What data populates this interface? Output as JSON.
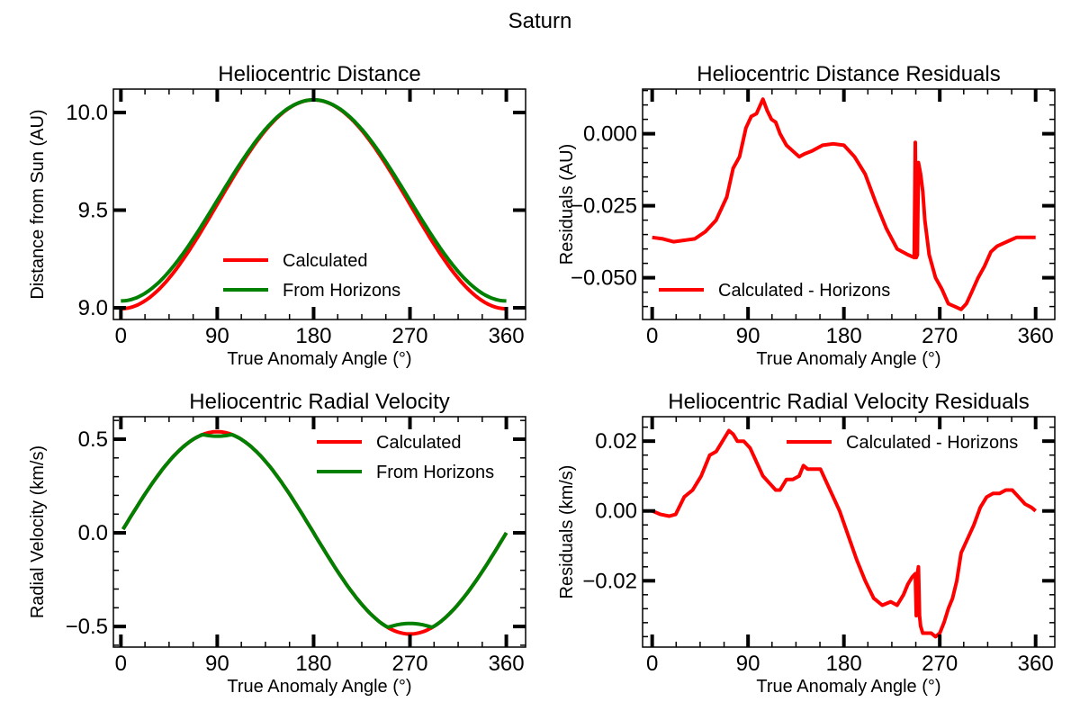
{
  "figure": {
    "suptitle": "Saturn"
  },
  "chart_data": [
    {
      "type": "line",
      "title": "Heliocentric Distance",
      "xlabel": "True Anomaly Angle (°)",
      "ylabel": "Distance from Sun (AU)",
      "xlim": [
        -7,
        378
      ],
      "ylim": [
        8.94,
        10.12
      ],
      "xticks": [
        0,
        90,
        180,
        270,
        360
      ],
      "yticks": [
        9.0,
        9.5,
        10.0
      ],
      "ytick_labels": [
        "9.0",
        "9.5",
        "10.0"
      ],
      "legend_position": "lower-center",
      "series": [
        {
          "name": "Calculated",
          "color": "#ff0000",
          "kind": "cos",
          "a": 9.53,
          "b": -0.535,
          "x0": 0,
          "x1": 360
        },
        {
          "name": "From Horizons",
          "color": "#008000",
          "kind": "cos",
          "a": 9.55,
          "b": -0.515,
          "x0": 0,
          "x1": 360
        }
      ]
    },
    {
      "type": "line",
      "title": "Heliocentric Distance Residuals",
      "xlabel": "True Anomaly Angle (°)",
      "ylabel": "Residuals (AU)",
      "xlim": [
        -9,
        378
      ],
      "ylim": [
        -0.0645,
        0.0155
      ],
      "xticks": [
        0,
        90,
        180,
        270,
        360
      ],
      "yticks": [
        0.0,
        -0.025,
        -0.05
      ],
      "ytick_labels": [
        "0.000",
        "−0.025",
        "−0.050"
      ],
      "legend_position": "lower-left",
      "series": [
        {
          "name": "Calculated - Horizons",
          "color": "#ff0000",
          "kind": "points",
          "x": [
            0,
            10,
            20,
            30,
            40,
            50,
            60,
            70,
            76,
            82,
            88,
            93,
            98,
            104,
            108,
            112,
            116,
            120,
            126,
            132,
            138,
            143,
            150,
            160,
            170,
            180,
            190,
            200,
            210,
            220,
            230,
            240,
            246,
            247,
            248,
            249,
            250,
            251,
            252,
            254,
            256,
            260,
            266,
            272,
            278,
            284,
            290,
            295,
            300,
            306,
            312,
            318,
            324,
            330,
            336,
            342,
            348,
            354,
            360
          ],
          "y": [
            -0.036,
            -0.0365,
            -0.0375,
            -0.037,
            -0.0365,
            -0.034,
            -0.03,
            -0.022,
            -0.012,
            -0.008,
            0.002,
            0.006,
            0.007,
            0.012,
            0.008,
            0.005,
            0.004,
            0.0,
            -0.004,
            -0.006,
            -0.008,
            -0.007,
            -0.006,
            -0.004,
            -0.0035,
            -0.004,
            -0.008,
            -0.014,
            -0.024,
            -0.033,
            -0.04,
            -0.042,
            -0.043,
            -0.003,
            -0.043,
            -0.042,
            -0.01,
            -0.012,
            -0.014,
            -0.02,
            -0.03,
            -0.042,
            -0.05,
            -0.054,
            -0.059,
            -0.06,
            -0.061,
            -0.059,
            -0.055,
            -0.05,
            -0.046,
            -0.041,
            -0.039,
            -0.038,
            -0.037,
            -0.036,
            -0.036,
            -0.036,
            -0.036
          ]
        }
      ]
    },
    {
      "type": "line",
      "title": "Heliocentric Radial Velocity",
      "xlabel": "True Anomaly Angle (°)",
      "ylabel": "Radial Velocity (km/s)",
      "xlim": [
        -7,
        378
      ],
      "ylim": [
        -0.61,
        0.62
      ],
      "xticks": [
        0,
        90,
        180,
        270,
        360
      ],
      "yticks": [
        0.5,
        0.0,
        -0.5
      ],
      "ytick_labels": [
        "0.5",
        "0.0",
        "−0.5"
      ],
      "legend_position": "upper-right",
      "series": [
        {
          "name": "Calculated",
          "color": "#ff0000",
          "kind": "sin",
          "a": 0.0,
          "b": 0.54,
          "x0": 2,
          "x1": 360
        },
        {
          "name": "From Horizons",
          "color": "#008000",
          "kind": "sinclip",
          "a": 0.0,
          "b": 0.54,
          "lo": -0.505,
          "hi": 0.525,
          "x0": 2,
          "x1": 360
        }
      ]
    },
    {
      "type": "line",
      "title": "Heliocentric Radial Velocity Residuals",
      "xlabel": "True Anomaly Angle (°)",
      "ylabel": "Residuals (km/s)",
      "xlim": [
        -9,
        378
      ],
      "ylim": [
        -0.039,
        0.027
      ],
      "xticks": [
        0,
        90,
        180,
        270,
        360
      ],
      "yticks": [
        0.02,
        0.0,
        -0.02
      ],
      "ytick_labels": [
        "0.02",
        "0.00",
        "−0.02"
      ],
      "legend_position": "upper-right",
      "series": [
        {
          "name": "Calculated - Horizons",
          "color": "#ff0000",
          "kind": "points",
          "x": [
            0,
            8,
            16,
            22,
            30,
            38,
            46,
            54,
            60,
            66,
            72,
            76,
            80,
            86,
            92,
            98,
            104,
            110,
            116,
            120,
            126,
            132,
            138,
            142,
            146,
            152,
            158,
            164,
            170,
            176,
            184,
            192,
            200,
            208,
            216,
            224,
            230,
            236,
            240,
            244,
            247,
            248,
            249,
            250,
            251,
            252,
            254,
            258,
            262,
            266,
            270,
            274,
            278,
            282,
            286,
            290,
            296,
            302,
            308,
            314,
            320,
            326,
            332,
            338,
            344,
            350,
            356,
            360
          ],
          "y": [
            0.0,
            -0.001,
            -0.0015,
            -0.001,
            0.004,
            0.006,
            0.01,
            0.016,
            0.017,
            0.02,
            0.023,
            0.022,
            0.02,
            0.02,
            0.018,
            0.014,
            0.01,
            0.008,
            0.006,
            0.006,
            0.009,
            0.009,
            0.01,
            0.013,
            0.012,
            0.012,
            0.012,
            0.008,
            0.004,
            0.0,
            -0.007,
            -0.014,
            -0.02,
            -0.025,
            -0.027,
            -0.026,
            -0.027,
            -0.024,
            -0.021,
            -0.019,
            -0.018,
            -0.03,
            -0.018,
            -0.016,
            -0.03,
            -0.033,
            -0.035,
            -0.035,
            -0.035,
            -0.036,
            -0.035,
            -0.032,
            -0.028,
            -0.025,
            -0.02,
            -0.012,
            -0.008,
            -0.004,
            0.001,
            0.004,
            0.005,
            0.005,
            0.006,
            0.006,
            0.004,
            0.002,
            0.001,
            0.0
          ]
        }
      ]
    }
  ]
}
